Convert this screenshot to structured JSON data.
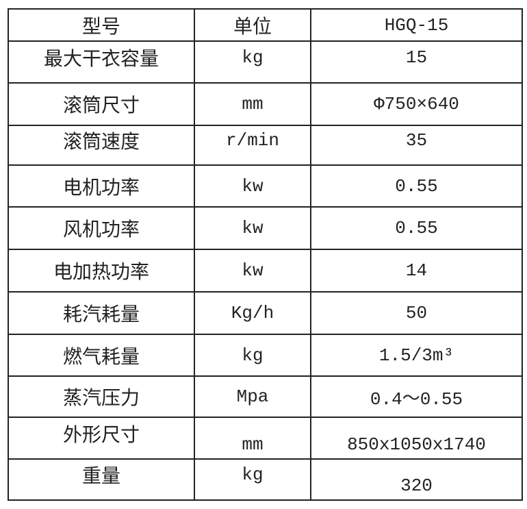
{
  "header": {
    "col_param": "型号",
    "col_unit": "单位",
    "col_model": "HGQ-15"
  },
  "rows": [
    {
      "param": "最大干衣容量",
      "unit": "kg",
      "value": "15"
    },
    {
      "param": "滚筒尺寸",
      "unit": "mm",
      "value": "Φ750×640"
    },
    {
      "param": "滚筒速度",
      "unit": "r/min",
      "value": "35"
    },
    {
      "param": "电机功率",
      "unit": "kw",
      "value": "0.55"
    },
    {
      "param": "风机功率",
      "unit": "kw",
      "value": "0.55"
    },
    {
      "param": "电加热功率",
      "unit": "kw",
      "value": "14"
    },
    {
      "param": "耗汽耗量",
      "unit": "Kg/h",
      "value": "50"
    },
    {
      "param": "燃气耗量",
      "unit": "kg",
      "value": "1.5/3m³"
    },
    {
      "param": "蒸汽压力",
      "unit": "Mpa",
      "value": "0.4～0.55"
    },
    {
      "param": "外形尺寸",
      "unit": "mm",
      "value": "850x1050x1740"
    },
    {
      "param": "重量",
      "unit": "kg",
      "value": "320"
    }
  ]
}
